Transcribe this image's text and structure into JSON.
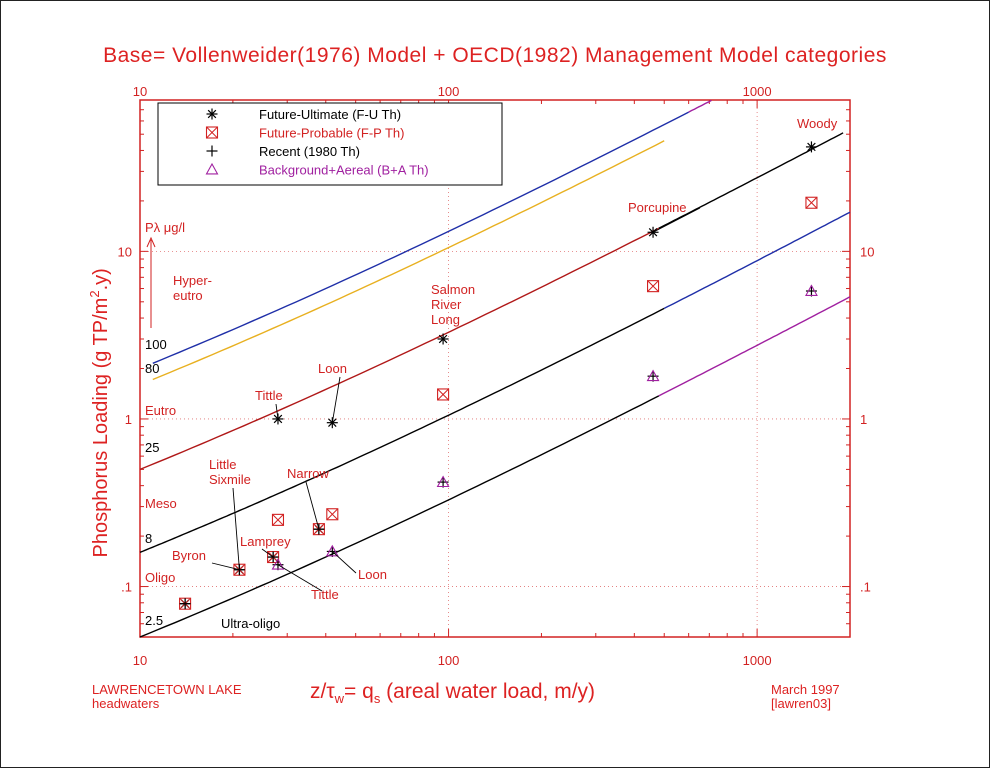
{
  "title": "Base= Vollenweider(1976) Model + OECD(1982) Management Model categories",
  "footer": {
    "left_line1": "LAWRENCETOWN LAKE",
    "left_line2": "headwaters",
    "right_line1": "March 1997",
    "right_line2": "[lawren03]"
  },
  "axis_labels": {
    "x_parts": [
      "z/",
      "τ",
      "w",
      "= q",
      "s",
      " (areal water load, m/y)"
    ],
    "y_parts": [
      "Phosphorus Loading (g TP/m",
      "2",
      ".y)"
    ]
  },
  "legend_items": [
    {
      "marker": "asterisk",
      "label": "Future-Ultimate (F-U Th)",
      "color": "#000000"
    },
    {
      "marker": "boxx",
      "label": "Future-Probable (F-P Th)",
      "color": "#d22222"
    },
    {
      "marker": "plus",
      "label": "Recent (1980 Th)",
      "color": "#000000"
    },
    {
      "marker": "triangle",
      "label": "Background+Aereal (B+A Th)",
      "color": "#a020a0"
    }
  ],
  "legend_symbols": {
    "asterisk": "✳",
    "boxx": "⊠",
    "plus": "+",
    "triangle": "△"
  },
  "annotations": {
    "concentration_label": "Pλ μg/l",
    "lines": [
      "100",
      "80",
      "25",
      "8",
      "2.5"
    ],
    "zones": [
      "Hyper-",
      "eutro",
      "Eutro",
      "Meso",
      "Oligo",
      "Ultra-oligo"
    ],
    "lakes": {
      "woody": "Woody",
      "porcupine": "Porcupine",
      "salmon1": "Salmon",
      "salmon2": "River",
      "salmon3": "Long",
      "loon_top": "Loon",
      "tittle_top": "Tittle",
      "little1": "Little",
      "little2": "Sixmile",
      "narrow": "Narrow",
      "lamprey": "Lamprey",
      "byron": "Byron",
      "loon_bottom": "Loon",
      "tittle_bottom": "Tittle"
    }
  },
  "colors": {
    "red": "#d22222",
    "black": "#000000",
    "blue": "#1f2fa8",
    "orange": "#e8b020",
    "magenta": "#a020a0",
    "darkred": "#b01818",
    "grid": "#e07070"
  },
  "chart_data": {
    "type": "scatter",
    "x_scale": "log",
    "y_scale": "log",
    "xlim": [
      10,
      2000
    ],
    "ylim": [
      0.05,
      80
    ],
    "grid": true,
    "legend_placement": "top-left",
    "x_ticks_bottom": [
      "10",
      "100",
      "1000"
    ],
    "x_ticks_top": [
      "10",
      "100",
      "1000"
    ],
    "y_ticks_left": [
      "10",
      "1",
      ".1"
    ],
    "y_ticks_right": [
      "10",
      "1",
      ".1"
    ],
    "series": [
      {
        "name": "Future-Ultimate (F-U Th)",
        "marker": "asterisk",
        "points": [
          {
            "x": 14,
            "y": 0.079
          },
          {
            "x": 21,
            "y": 0.126
          },
          {
            "x": 27,
            "y": 0.15
          },
          {
            "x": 38,
            "y": 0.22
          },
          {
            "x": 28,
            "y": 1.0
          },
          {
            "x": 42,
            "y": 0.95
          },
          {
            "x": 96,
            "y": 3.0
          },
          {
            "x": 460,
            "y": 13.0
          },
          {
            "x": 1500,
            "y": 42.0
          }
        ]
      },
      {
        "name": "Future-Probable (F-P Th)",
        "marker": "boxx",
        "points": [
          {
            "x": 14,
            "y": 0.079
          },
          {
            "x": 21,
            "y": 0.126
          },
          {
            "x": 27,
            "y": 0.15
          },
          {
            "x": 38,
            "y": 0.22
          },
          {
            "x": 28,
            "y": 0.25
          },
          {
            "x": 42,
            "y": 0.27
          },
          {
            "x": 96,
            "y": 1.4
          },
          {
            "x": 460,
            "y": 6.2
          },
          {
            "x": 1500,
            "y": 19.5
          }
        ]
      },
      {
        "name": "Recent (1980 Th)",
        "marker": "plus",
        "points": [
          {
            "x": 14,
            "y": 0.079
          },
          {
            "x": 21,
            "y": 0.126
          },
          {
            "x": 27,
            "y": 0.15
          },
          {
            "x": 38,
            "y": 0.22
          },
          {
            "x": 28,
            "y": 0.135
          },
          {
            "x": 42,
            "y": 0.162
          },
          {
            "x": 96,
            "y": 0.42
          },
          {
            "x": 460,
            "y": 1.8
          },
          {
            "x": 1500,
            "y": 5.8
          }
        ]
      },
      {
        "name": "Background+Aereal (B+A Th)",
        "marker": "triangle",
        "points": [
          {
            "x": 28,
            "y": 0.135
          },
          {
            "x": 42,
            "y": 0.162
          },
          {
            "x": 96,
            "y": 0.42
          },
          {
            "x": 460,
            "y": 1.8
          },
          {
            "x": 1500,
            "y": 5.8
          }
        ]
      }
    ],
    "model_lines": [
      {
        "p": 100,
        "segments": [
          {
            "from": 11,
            "to": 600,
            "color": "#1f2fa8"
          },
          {
            "from": 600,
            "to": 1000,
            "color": "#a020a0"
          }
        ]
      },
      {
        "p": 80,
        "segments": [
          {
            "from": 11,
            "to": 500,
            "color": "#e8b020"
          }
        ]
      },
      {
        "p": 25,
        "segments": [
          {
            "from": 10,
            "to": 480,
            "color": "#b01818"
          },
          {
            "from": 480,
            "to": 1900,
            "color": "#000000"
          }
        ]
      },
      {
        "p": 8,
        "segments": [
          {
            "from": 10,
            "to": 40,
            "color": "#000000"
          },
          {
            "from": 40,
            "to": 500,
            "color": "#000000"
          },
          {
            "from": 500,
            "to": 2000,
            "color": "#1f2fa8"
          }
        ]
      },
      {
        "p": 2.5,
        "segments": [
          {
            "from": 10,
            "to": 480,
            "color": "#000000"
          },
          {
            "from": 480,
            "to": 2000,
            "color": "#a020a0"
          }
        ]
      }
    ]
  }
}
